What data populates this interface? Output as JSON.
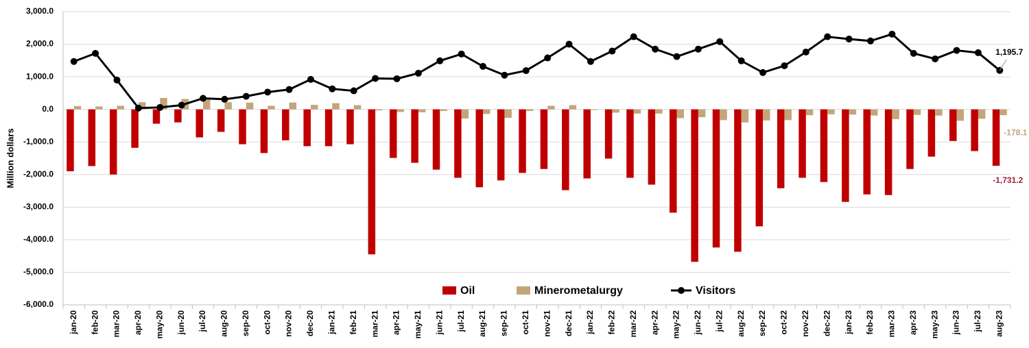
{
  "chart_data": {
    "type": "bar_line",
    "y_label": "Million dollars",
    "categories": [
      "jan-20",
      "feb-20",
      "mar-20",
      "apr-20",
      "may-20",
      "jun-20",
      "jul-20",
      "aug-20",
      "sep-20",
      "oct-20",
      "nov-20",
      "dec-20",
      "jan-21",
      "feb-21",
      "mar-21",
      "apr-21",
      "may-21",
      "jun-21",
      "jul-21",
      "aug-21",
      "sep-21",
      "oct-21",
      "nov-21",
      "dec-21",
      "jan-22",
      "feb-22",
      "mar-22",
      "apr-22",
      "may-22",
      "jun-22",
      "jul-22",
      "aug-22",
      "sep-22",
      "oct-22",
      "nov-22",
      "dec-22",
      "jan-23",
      "feb-23",
      "mar-23",
      "apr-23",
      "may-23",
      "jun-23",
      "jul-23",
      "aug-23"
    ],
    "series": [
      {
        "name": "Oil",
        "kind": "bar",
        "color": "#c00000",
        "label_color": "#a0203c",
        "values": [
          -1900,
          -1740,
          -2000,
          -1180,
          -440,
          -400,
          -860,
          -690,
          -1070,
          -1340,
          -950,
          -1130,
          -1130,
          -1070,
          -4450,
          -1490,
          -1640,
          -1850,
          -2100,
          -2390,
          -2180,
          -1950,
          -1830,
          -2480,
          -2120,
          -1510,
          -2100,
          -2310,
          -3170,
          -4680,
          -4240,
          -4370,
          -3590,
          -2420,
          -2100,
          -2230,
          -2840,
          -2610,
          -2630,
          -1830,
          -1450,
          -970,
          -1280,
          -1731.2
        ],
        "value_labels": [
          null,
          null,
          null,
          null,
          null,
          null,
          null,
          null,
          null,
          null,
          null,
          null,
          null,
          null,
          null,
          null,
          null,
          null,
          null,
          null,
          null,
          null,
          null,
          null,
          null,
          null,
          null,
          null,
          null,
          null,
          null,
          null,
          null,
          null,
          null,
          null,
          null,
          null,
          null,
          null,
          null,
          null,
          null,
          "-1,731.2"
        ]
      },
      {
        "name": "Minerometalurgy",
        "kind": "bar",
        "color": "#c4a57b",
        "label_color": "#c4a57b",
        "values": [
          100,
          90,
          110,
          220,
          350,
          320,
          300,
          220,
          210,
          110,
          210,
          140,
          190,
          130,
          -30,
          -80,
          -90,
          -50,
          -280,
          -140,
          -260,
          -50,
          110,
          130,
          -20,
          -100,
          -130,
          -130,
          -270,
          -240,
          -330,
          -400,
          -340,
          -330,
          -180,
          -150,
          -160,
          -190,
          -300,
          -170,
          -190,
          -350,
          -290,
          -178.1
        ],
        "value_labels": [
          null,
          null,
          null,
          null,
          null,
          null,
          null,
          null,
          null,
          null,
          null,
          null,
          null,
          null,
          null,
          null,
          null,
          null,
          null,
          null,
          null,
          null,
          null,
          null,
          null,
          null,
          null,
          null,
          null,
          null,
          null,
          null,
          null,
          null,
          null,
          null,
          null,
          null,
          null,
          null,
          null,
          null,
          null,
          "-178.1"
        ]
      },
      {
        "name": "Visitors",
        "kind": "line",
        "color": "#000000",
        "label_color": "#000000",
        "values": [
          1470,
          1720,
          900,
          40,
          60,
          130,
          340,
          310,
          400,
          530,
          610,
          920,
          630,
          570,
          950,
          940,
          1110,
          1490,
          1700,
          1320,
          1050,
          1190,
          1580,
          2000,
          1470,
          1790,
          2230,
          1850,
          1620,
          1850,
          2080,
          1490,
          1130,
          1340,
          1760,
          2230,
          2160,
          2100,
          2310,
          1720,
          1550,
          1810,
          1740,
          1195.7
        ],
        "value_labels": [
          null,
          null,
          null,
          null,
          null,
          null,
          null,
          null,
          null,
          null,
          null,
          null,
          null,
          null,
          null,
          null,
          null,
          null,
          null,
          null,
          null,
          null,
          null,
          null,
          null,
          null,
          null,
          null,
          null,
          null,
          null,
          null,
          null,
          null,
          null,
          null,
          null,
          null,
          null,
          null,
          null,
          null,
          null,
          "1,195.7"
        ]
      }
    ],
    "ylim": [
      -6000,
      3000
    ],
    "yticks": [
      {
        "value": -6000,
        "label": "-6,000.0"
      },
      {
        "value": -5000,
        "label": "-5,000.0"
      },
      {
        "value": -4000,
        "label": "-4,000.0"
      },
      {
        "value": -3000,
        "label": "-3,000.0"
      },
      {
        "value": -2000,
        "label": "-2,000.0"
      },
      {
        "value": -1000,
        "label": "-1,000.0"
      },
      {
        "value": 0,
        "label": "0.0"
      },
      {
        "value": 1000,
        "label": "1,000.0"
      },
      {
        "value": 2000,
        "label": "2,000.0"
      },
      {
        "value": 3000,
        "label": "3,000.0"
      }
    ],
    "grid": true,
    "legend": "bottom"
  }
}
